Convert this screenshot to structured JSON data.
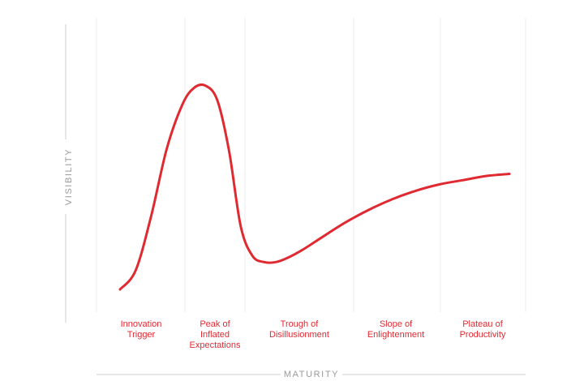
{
  "chart_data": {
    "type": "line",
    "title": "",
    "xlabel": "MATURITY",
    "ylabel": "VISIBILITY",
    "grid": true,
    "line_color": "#e02a32",
    "axis_color": "#cfcfcf",
    "grid_color": "#eeeeee",
    "xlim": [
      0,
      100
    ],
    "ylim": [
      0,
      100
    ],
    "phases": [
      {
        "lines": [
          "Innovation",
          "Trigger"
        ]
      },
      {
        "lines": [
          "Peak of",
          "Inflated",
          "Expectations"
        ]
      },
      {
        "lines": [
          "Trough of",
          "Disillusionment"
        ]
      },
      {
        "lines": [
          "Slope of",
          "Enlightenment"
        ]
      },
      {
        "lines": [
          "Plateau of",
          "Productivity"
        ]
      }
    ],
    "series": [
      {
        "x": [
          0,
          4,
          8,
          12,
          16,
          19,
          22,
          25,
          28,
          31,
          34,
          37,
          40,
          43,
          47,
          52,
          58,
          64,
          70,
          76,
          82,
          88,
          94,
          100
        ],
        "y": [
          0,
          9,
          35,
          67,
          88,
          96,
          97,
          90,
          66,
          30,
          16,
          13,
          13,
          15,
          19,
          25,
          32,
          38,
          43,
          47,
          50,
          52,
          54,
          55
        ]
      }
    ]
  }
}
